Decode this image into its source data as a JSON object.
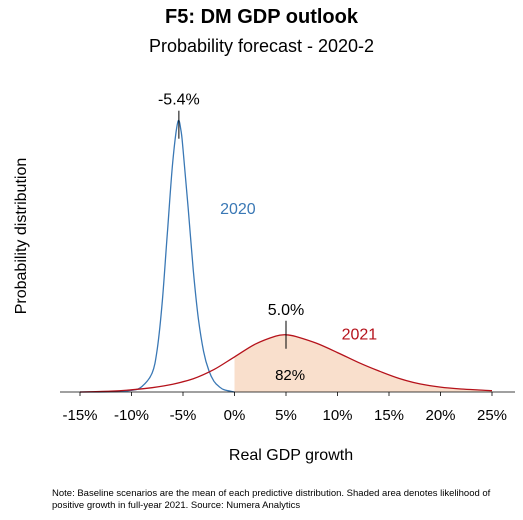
{
  "title": "F5: DM GDP outlook",
  "subtitle": "Probability forecast - 2020-2",
  "note": "Note: Baseline scenarios are the mean of each predictive distribution. Shaded area denotes likelihood of positive growth in full-year 2021. Source: Numera Analytics",
  "chart_data": {
    "type": "area",
    "xlabel": "Real GDP growth",
    "ylabel": "Probability distribution",
    "xlim": [
      -15,
      25
    ],
    "x_ticks": [
      -15,
      -10,
      -5,
      0,
      5,
      10,
      15,
      20,
      25
    ],
    "x_tick_labels": [
      "-15%",
      "-10%",
      "-5%",
      "0%",
      "5%",
      "10%",
      "15%",
      "20%",
      "25%"
    ],
    "grid": false,
    "series": [
      {
        "name": "2020",
        "color": "#3a78b5",
        "baseline": -5.4,
        "baseline_label": "-5.4%",
        "x": [
          -15,
          -12,
          -10,
          -9,
          -8,
          -7.5,
          -7,
          -6.5,
          -6,
          -5.5,
          -5.2,
          -5,
          -4.5,
          -4,
          -3.5,
          -3,
          -2.5,
          -2,
          -1.5,
          -1,
          0
        ],
        "y": [
          0.0,
          0.001,
          0.006,
          0.02,
          0.07,
          0.16,
          0.34,
          0.6,
          0.85,
          1.0,
          0.97,
          0.9,
          0.68,
          0.45,
          0.27,
          0.15,
          0.08,
          0.04,
          0.02,
          0.008,
          0.0
        ]
      },
      {
        "name": "2021",
        "color": "#b5121b",
        "baseline": 5.0,
        "baseline_label": "5.0%",
        "shade_from": 0,
        "shade_color": "#f9dfcc",
        "shade_label": "82%",
        "x": [
          -15,
          -12,
          -10,
          -8,
          -6,
          -4,
          -2,
          0,
          2,
          4,
          5,
          6,
          8,
          10,
          12,
          14,
          16,
          18,
          20,
          22,
          24,
          25
        ],
        "y": [
          0.0,
          0.003,
          0.008,
          0.016,
          0.029,
          0.049,
          0.083,
          0.13,
          0.177,
          0.207,
          0.212,
          0.205,
          0.18,
          0.146,
          0.11,
          0.078,
          0.05,
          0.03,
          0.018,
          0.011,
          0.007,
          0.005
        ]
      }
    ]
  }
}
